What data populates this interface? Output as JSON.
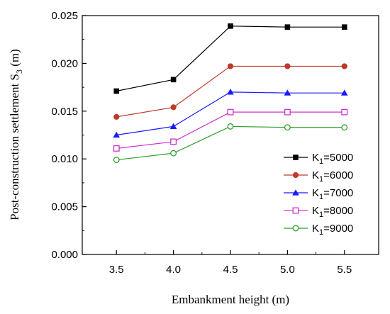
{
  "chart_data": {
    "type": "line",
    "title": "",
    "xlabel": "Embankment height (m)",
    "ylabel_main": "Post-construction settlement S",
    "ylabel_sub": "3",
    "ylabel_unit": " (m)",
    "x": [
      3.5,
      4.0,
      4.5,
      5.0,
      5.5
    ],
    "x_ticks": [
      "3.5",
      "4.0",
      "4.5",
      "5.0",
      "5.5"
    ],
    "xlim": [
      3.2,
      5.8
    ],
    "y_ticks": [
      "0.000",
      "0.005",
      "0.010",
      "0.015",
      "0.020",
      "0.025"
    ],
    "ylim": [
      0.0,
      0.025
    ],
    "grid": false,
    "legend_position": "center-right",
    "series": [
      {
        "name_main": "K",
        "name_sub": "1",
        "name_rest": "=5000",
        "marker": "filled-square",
        "color": "#000000",
        "values": [
          0.0171,
          0.0183,
          0.0239,
          0.0238,
          0.0238
        ]
      },
      {
        "name_main": "K",
        "name_sub": "1",
        "name_rest": "=6000",
        "marker": "filled-circle",
        "color": "#c0392b",
        "values": [
          0.0144,
          0.0154,
          0.0197,
          0.0197,
          0.0197
        ]
      },
      {
        "name_main": "K",
        "name_sub": "1",
        "name_rest": "=7000",
        "marker": "filled-triangle",
        "color": "#1a1aff",
        "values": [
          0.0125,
          0.0134,
          0.017,
          0.0169,
          0.0169
        ]
      },
      {
        "name_main": "K",
        "name_sub": "1",
        "name_rest": "=8000",
        "marker": "open-square",
        "color": "#cc33cc",
        "values": [
          0.0111,
          0.0118,
          0.0149,
          0.0149,
          0.0149
        ]
      },
      {
        "name_main": "K",
        "name_sub": "1",
        "name_rest": "=9000",
        "marker": "open-circle",
        "color": "#2e9e2e",
        "values": [
          0.0099,
          0.0106,
          0.0134,
          0.0133,
          0.0133
        ]
      }
    ]
  }
}
